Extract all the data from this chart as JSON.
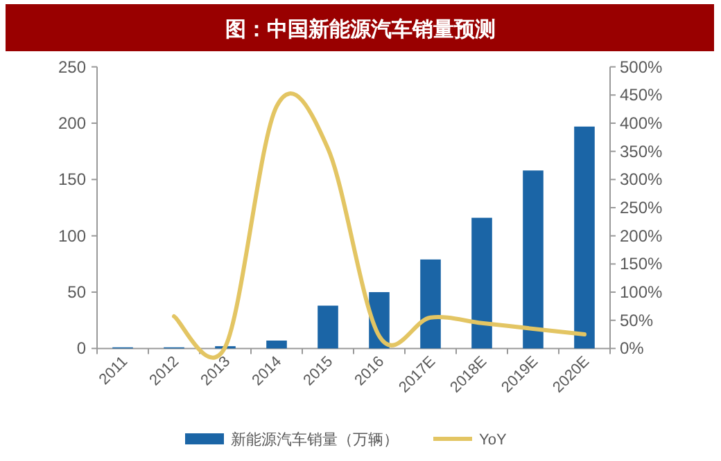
{
  "chart_data": {
    "type": "bar",
    "title": "图：中国新能源汽车销量预测",
    "categories": [
      "2011",
      "2012",
      "2013",
      "2014",
      "2015",
      "2016",
      "2017E",
      "2018E",
      "2019E",
      "2020E"
    ],
    "series": [
      {
        "name": "新能源汽车销量（万辆）",
        "color": "#1b65a6",
        "values": [
          1,
          1,
          2,
          7,
          38,
          50,
          79,
          116,
          158,
          197
        ]
      },
      {
        "name": "YoY",
        "type": "line",
        "axis": "y2",
        "color": "#e3c563",
        "values": [
          null,
          57,
          3,
          430,
          355,
          22,
          55,
          45,
          35,
          25
        ]
      }
    ],
    "ylim": [
      0,
      250
    ],
    "yticks": [
      0,
      50,
      100,
      150,
      200,
      250
    ],
    "y2lim": [
      0,
      500
    ],
    "y2ticks": [
      {
        "value": 0,
        "label": "0%"
      },
      {
        "value": 50,
        "label": "50%"
      },
      {
        "value": 100,
        "label": "100%"
      },
      {
        "value": 150,
        "label": "150%"
      },
      {
        "value": 200,
        "label": "200%"
      },
      {
        "value": 250,
        "label": "250%"
      },
      {
        "value": 300,
        "label": "300%"
      },
      {
        "value": 350,
        "label": "350%"
      },
      {
        "value": 400,
        "label": "400%"
      },
      {
        "value": 450,
        "label": "450%"
      },
      {
        "value": 500,
        "label": "500%"
      }
    ],
    "legend": "bottom"
  }
}
